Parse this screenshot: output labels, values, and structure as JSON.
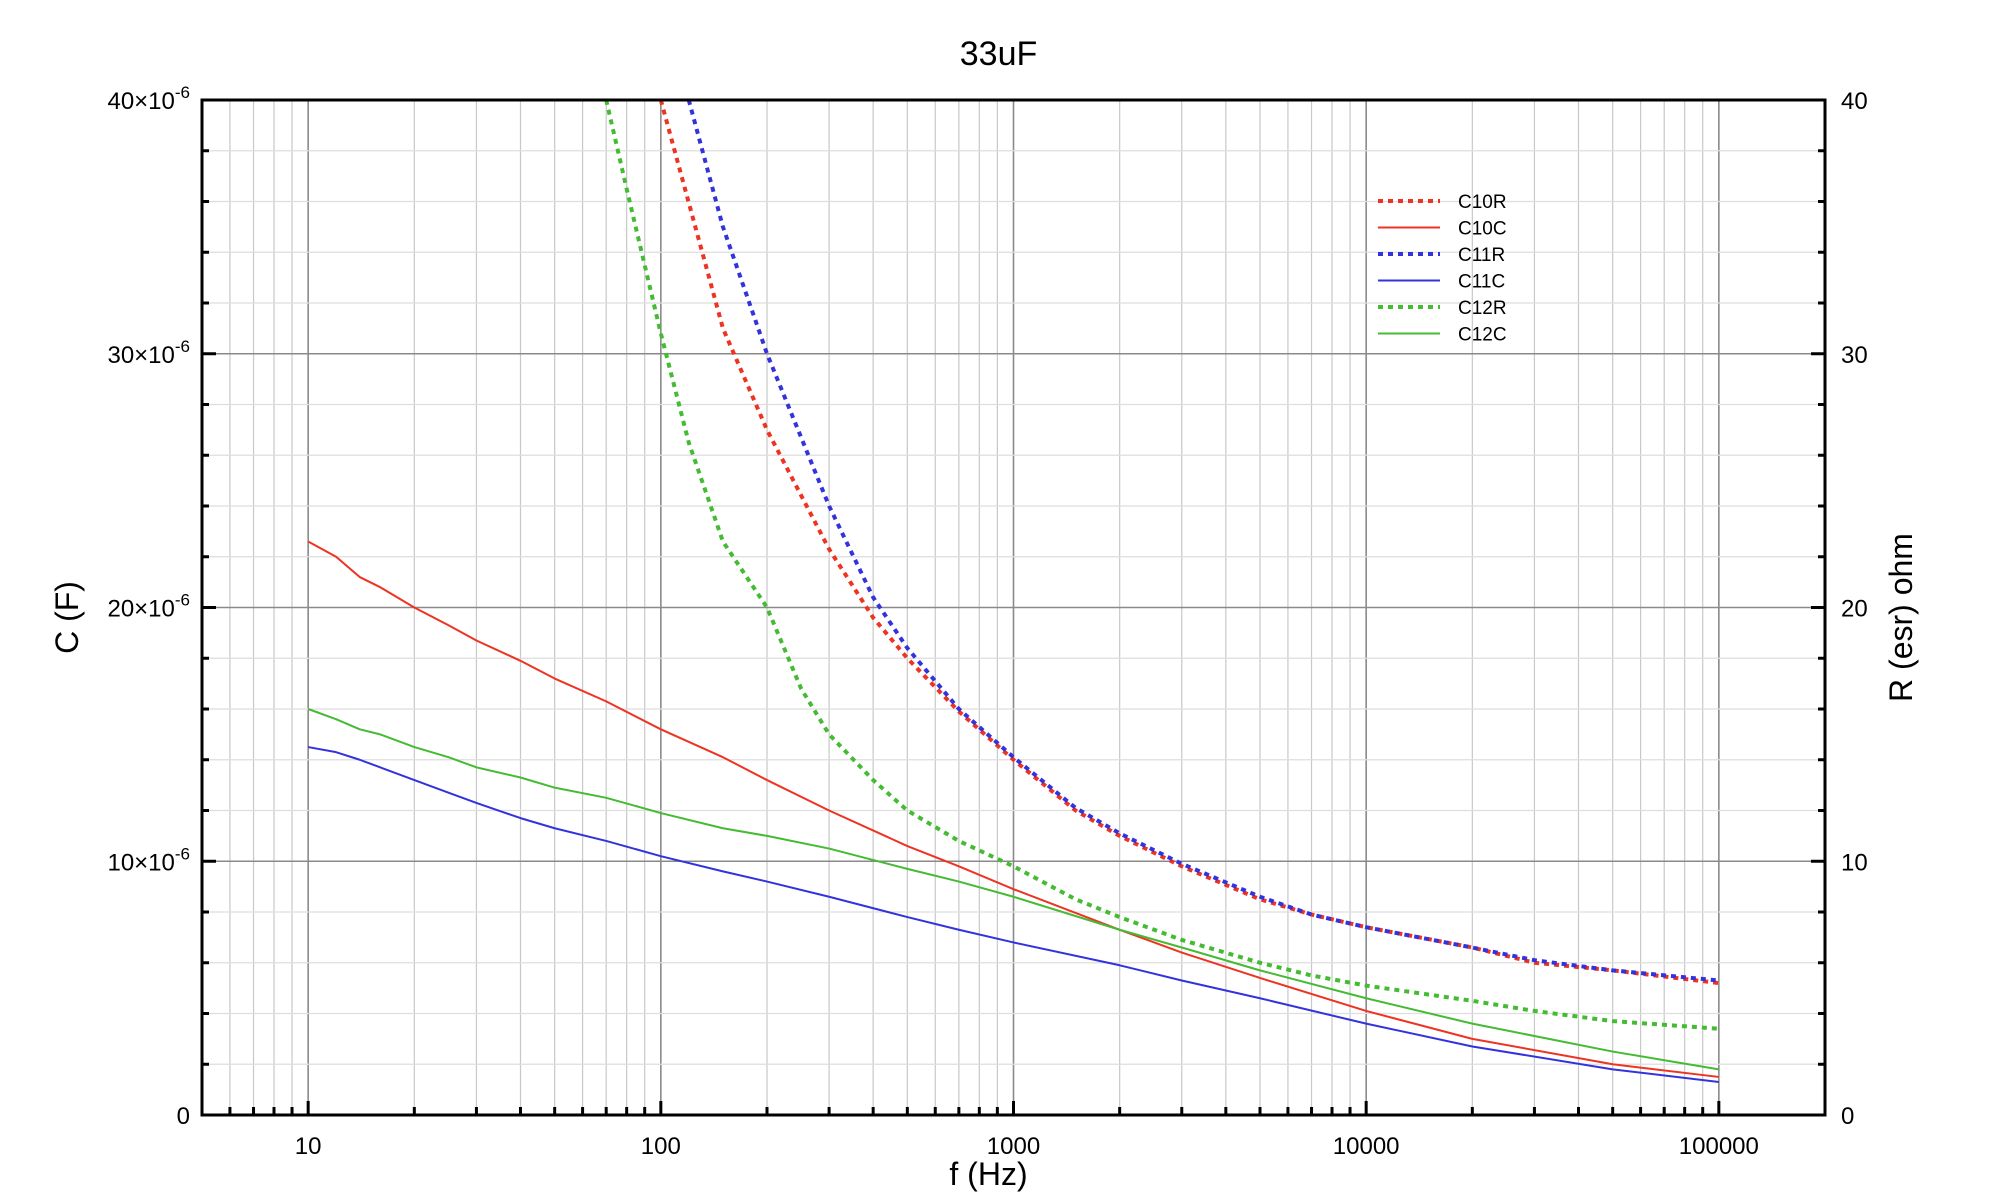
{
  "chart_data": {
    "type": "line",
    "title": "33uF",
    "xlabel": "f (Hz)",
    "ylabel": "C (F)",
    "y2label": "R (esr) ohm",
    "x_scale": "log",
    "xlim": [
      5,
      200000
    ],
    "ylim": [
      0,
      4e-05
    ],
    "y2lim": [
      0,
      40
    ],
    "grid": true,
    "legend_position": "top-right",
    "x_ticks": [
      {
        "value": 10,
        "label": "10"
      },
      {
        "value": 100,
        "label": "100"
      },
      {
        "value": 1000,
        "label": "1000"
      },
      {
        "value": 10000,
        "label": "10000"
      },
      {
        "value": 100000,
        "label": "100000"
      }
    ],
    "y_ticks": [
      {
        "value": 0,
        "mant": "0",
        "exp": ""
      },
      {
        "value": 1e-05,
        "mant": "10×10",
        "exp": "-6"
      },
      {
        "value": 2e-05,
        "mant": "20×10",
        "exp": "-6"
      },
      {
        "value": 3e-05,
        "mant": "30×10",
        "exp": "-6"
      },
      {
        "value": 4e-05,
        "mant": "40×10",
        "exp": "-6"
      }
    ],
    "y2_ticks": [
      {
        "value": 0,
        "label": "0"
      },
      {
        "value": 10,
        "label": "10"
      },
      {
        "value": 20,
        "label": "20"
      },
      {
        "value": 30,
        "label": "30"
      },
      {
        "value": 40,
        "label": "40"
      }
    ],
    "series": [
      {
        "name": "C10R",
        "axis": "right",
        "style": "dotted",
        "color": "#ee3322",
        "x": [
          100,
          150,
          200,
          300,
          400,
          500,
          700,
          1000,
          1500,
          2000,
          3000,
          5000,
          7000,
          10000,
          20000,
          30000,
          50000,
          100000
        ],
        "y": [
          40,
          31,
          27,
          22.3,
          19.6,
          18,
          15.9,
          14,
          12,
          11,
          9.8,
          8.5,
          7.9,
          7.4,
          6.6,
          6,
          5.7,
          5.2
        ]
      },
      {
        "name": "C10C",
        "axis": "left",
        "style": "solid",
        "color": "#ee3322",
        "x": [
          10,
          12,
          14,
          16,
          20,
          25,
          30,
          40,
          50,
          70,
          100,
          150,
          200,
          300,
          500,
          700,
          1000,
          2000,
          3000,
          5000,
          10000,
          20000,
          50000,
          100000
        ],
        "y": [
          2.26e-05,
          2.2e-05,
          2.12e-05,
          2.08e-05,
          2e-05,
          1.93e-05,
          1.87e-05,
          1.79e-05,
          1.72e-05,
          1.63e-05,
          1.52e-05,
          1.41e-05,
          1.32e-05,
          1.2e-05,
          1.06e-05,
          9.8e-06,
          8.9e-06,
          7.3e-06,
          6.4e-06,
          5.4e-06,
          4.1e-06,
          3e-06,
          2e-06,
          1.5e-06
        ]
      },
      {
        "name": "C11R",
        "axis": "right",
        "style": "dotted",
        "color": "#3333dd",
        "x": [
          120,
          150,
          200,
          300,
          400,
          500,
          700,
          1000,
          1500,
          2000,
          3000,
          5000,
          7000,
          10000,
          20000,
          30000,
          50000,
          100000
        ],
        "y": [
          40,
          35,
          30,
          24,
          20.4,
          18.4,
          16,
          14.1,
          12.1,
          11.1,
          9.9,
          8.6,
          7.9,
          7.4,
          6.6,
          6.1,
          5.7,
          5.3
        ]
      },
      {
        "name": "C11C",
        "axis": "left",
        "style": "solid",
        "color": "#3333dd",
        "x": [
          10,
          12,
          14,
          16,
          20,
          25,
          30,
          40,
          50,
          70,
          100,
          150,
          200,
          300,
          500,
          700,
          1000,
          2000,
          3000,
          5000,
          10000,
          20000,
          50000,
          100000
        ],
        "y": [
          1.45e-05,
          1.43e-05,
          1.4e-05,
          1.37e-05,
          1.32e-05,
          1.27e-05,
          1.23e-05,
          1.17e-05,
          1.13e-05,
          1.08e-05,
          1.02e-05,
          9.6e-06,
          9.2e-06,
          8.6e-06,
          7.8e-06,
          7.3e-06,
          6.8e-06,
          5.9e-06,
          5.3e-06,
          4.6e-06,
          3.6e-06,
          2.7e-06,
          1.8e-06,
          1.3e-06
        ]
      },
      {
        "name": "C12R",
        "axis": "right",
        "style": "dotted",
        "color": "#44bb33",
        "x": [
          70,
          80,
          100,
          120,
          150,
          200,
          250,
          300,
          400,
          500,
          700,
          1000,
          1500,
          2000,
          3000,
          5000,
          7000,
          10000,
          20000,
          30000,
          50000,
          100000
        ],
        "y": [
          40,
          36.5,
          30.8,
          26.5,
          22.6,
          20,
          16.8,
          15,
          13.2,
          12,
          10.8,
          9.8,
          8.5,
          7.8,
          6.9,
          6,
          5.5,
          5.1,
          4.5,
          4.1,
          3.7,
          3.4
        ]
      },
      {
        "name": "C12C",
        "axis": "left",
        "style": "solid",
        "color": "#44bb33",
        "x": [
          10,
          12,
          14,
          16,
          20,
          25,
          30,
          40,
          50,
          70,
          100,
          150,
          200,
          300,
          500,
          700,
          1000,
          2000,
          3000,
          5000,
          10000,
          20000,
          50000,
          100000
        ],
        "y": [
          1.6e-05,
          1.56e-05,
          1.52e-05,
          1.5e-05,
          1.45e-05,
          1.41e-05,
          1.37e-05,
          1.33e-05,
          1.29e-05,
          1.25e-05,
          1.19e-05,
          1.13e-05,
          1.1e-05,
          1.05e-05,
          9.7e-06,
          9.2e-06,
          8.6e-06,
          7.3e-06,
          6.6e-06,
          5.7e-06,
          4.6e-06,
          3.6e-06,
          2.5e-06,
          1.8e-06
        ]
      }
    ]
  }
}
